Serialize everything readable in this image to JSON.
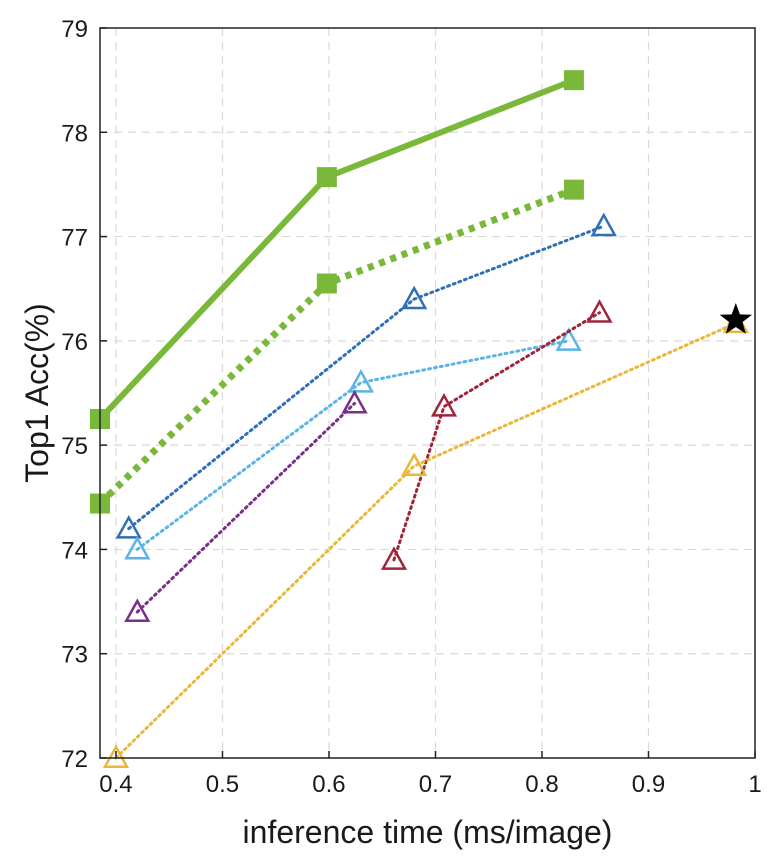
{
  "chart_data": {
    "type": "line",
    "title": "",
    "xlabel": "inference time (ms/image)",
    "ylabel": "Top1 Acc(%)",
    "xlim": [
      0.385,
      1.0
    ],
    "ylim": [
      72,
      79
    ],
    "xticks": [
      "0.4",
      "0.5",
      "0.6",
      "0.7",
      "0.8",
      "0.9",
      "1"
    ],
    "xtick_values": [
      0.4,
      0.5,
      0.6,
      0.7,
      0.8,
      0.9,
      1.0
    ],
    "yticks": [
      "72",
      "73",
      "74",
      "75",
      "76",
      "77",
      "78",
      "79"
    ],
    "ytick_values": [
      72,
      73,
      74,
      75,
      76,
      77,
      78,
      79
    ],
    "grid": true,
    "legend": "none",
    "series": [
      {
        "x": [
          0.385,
          0.598,
          0.83
        ],
        "y": [
          75.25,
          77.57,
          78.5
        ],
        "color": "#7ab83a",
        "line": "solid",
        "marker": "square"
      },
      {
        "x": [
          0.385,
          0.598,
          0.83
        ],
        "y": [
          74.44,
          76.55,
          77.45
        ],
        "color": "#7ab83a",
        "line": "dotted-thick",
        "marker": "square"
      },
      {
        "x": [
          0.412,
          0.68,
          0.858
        ],
        "y": [
          74.2,
          76.4,
          77.1
        ],
        "color": "#2f6fb5",
        "line": "dotted",
        "marker": "triangle"
      },
      {
        "x": [
          0.42,
          0.63,
          0.825
        ],
        "y": [
          74.0,
          75.6,
          76.0
        ],
        "color": "#5ab4e5",
        "line": "dotted",
        "marker": "triangle"
      },
      {
        "x": [
          0.42,
          0.624,
          null
        ],
        "y": [
          73.4,
          75.4,
          null
        ],
        "color": "#7a2f8a",
        "line": "dotted",
        "marker": "triangle"
      },
      {
        "x": [
          0.661,
          0.708,
          0.854
        ],
        "y": [
          73.9,
          75.37,
          76.27
        ],
        "color": "#a0243a",
        "line": "dotted",
        "marker": "triangle"
      },
      {
        "x": [
          0.4,
          0.68,
          0.982
        ],
        "y": [
          72.0,
          74.8,
          76.17
        ],
        "color": "#e8b83a",
        "line": "dotted",
        "marker": "triangle"
      }
    ],
    "highlight": {
      "x": 0.982,
      "y": 76.2,
      "marker": "star",
      "color": "#000000"
    }
  }
}
